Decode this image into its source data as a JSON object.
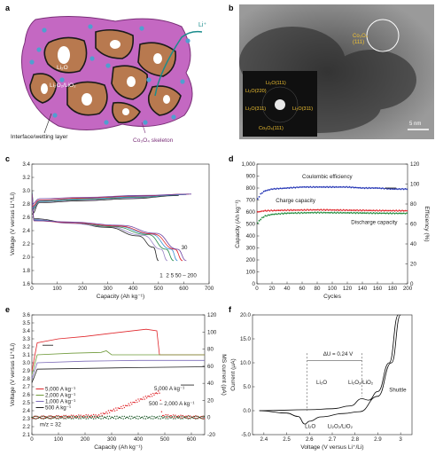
{
  "colors": {
    "purple": "#c468c2",
    "purple_dark": "#7a2f78",
    "brown": "#b8794f",
    "blue_dot": "#4f9fd0",
    "coul_blue": "#2233b4",
    "charge_red": "#e0262b",
    "discharge_green": "#1e8a3a",
    "ms_purple": "#5a57a8",
    "shuttle_green": "#1e8a3a"
  },
  "panel_labels": {
    "a": "a",
    "b": "b",
    "c": "c",
    "d": "d",
    "e": "e",
    "f": "f"
  },
  "panel_a": {
    "li_ion": "Li⁺",
    "li2o": "Li₂O",
    "li2o2_lio2": "Li₂O₂/LiO₂",
    "interface_label": "Interface/wetting layer",
    "skeleton_label": "Co₃O₄ skeleton",
    "icon": "porous-composite-schematic"
  },
  "panel_b": {
    "label_top": "Co₃O₄",
    "label_top2": "(111)",
    "saed": [
      "Li₂O(111)",
      "Li₂O(220)",
      "Li₂O(311)",
      "Co₃O₄(111)",
      "Li₂O(311)"
    ],
    "scale_bar": "5 nm"
  },
  "chart_data": [
    {
      "panel": "c",
      "type": "line",
      "xlabel": "Capacity (Ah kg⁻¹)",
      "ylabel": "Voltage (V versus Li⁺/Li)",
      "xlim": [
        0,
        700
      ],
      "ylim": [
        1.6,
        3.4
      ],
      "xticks": [
        0,
        100,
        200,
        300,
        400,
        500,
        600,
        700
      ],
      "yticks": [
        1.6,
        1.8,
        2.0,
        2.2,
        2.4,
        2.6,
        2.8,
        3.0,
        3.2,
        3.4
      ],
      "annotations": [
        "30",
        "1",
        "2",
        "5",
        "50 – 200"
      ],
      "series": [
        {
          "color": "#222222",
          "charge": [
            [
              0,
              2.65
            ],
            [
              30,
              2.82
            ],
            [
              200,
              2.85
            ],
            [
              400,
              2.88
            ],
            [
              580,
              2.93
            ]
          ],
          "discharge": [
            [
              0,
              3.0
            ],
            [
              8,
              2.58
            ],
            [
              150,
              2.52
            ],
            [
              300,
              2.45
            ],
            [
              420,
              2.32
            ],
            [
              480,
              2.15
            ],
            [
              500,
              1.95
            ]
          ]
        },
        {
          "color": "#9a86c6",
          "charge": [
            [
              0,
              2.7
            ],
            [
              30,
              2.83
            ],
            [
              200,
              2.86
            ],
            [
              400,
              2.89
            ],
            [
              590,
              2.94
            ]
          ],
          "discharge": [
            [
              0,
              2.98
            ],
            [
              8,
              2.57
            ],
            [
              150,
              2.51
            ],
            [
              300,
              2.46
            ],
            [
              440,
              2.33
            ],
            [
              510,
              2.12
            ],
            [
              535,
              1.95
            ]
          ]
        },
        {
          "color": "#2a8d4f",
          "charge": [
            [
              0,
              2.72
            ],
            [
              30,
              2.84
            ],
            [
              200,
              2.87
            ],
            [
              420,
              2.9
            ],
            [
              600,
              2.94
            ]
          ],
          "discharge": [
            [
              0,
              2.97
            ],
            [
              8,
              2.56
            ],
            [
              150,
              2.52
            ],
            [
              320,
              2.46
            ],
            [
              460,
              2.34
            ],
            [
              530,
              2.12
            ],
            [
              560,
              1.95
            ]
          ]
        },
        {
          "color": "#3e8fd2",
          "charge": [
            [
              0,
              2.74
            ],
            [
              30,
              2.85
            ],
            [
              200,
              2.88
            ],
            [
              420,
              2.91
            ],
            [
              610,
              2.94
            ]
          ],
          "discharge": [
            [
              0,
              2.96
            ],
            [
              8,
              2.56
            ],
            [
              150,
              2.52
            ],
            [
              330,
              2.47
            ],
            [
              470,
              2.35
            ],
            [
              550,
              2.12
            ],
            [
              575,
              1.95
            ]
          ]
        },
        {
          "color": "#e0262b",
          "charge": [
            [
              0,
              2.76
            ],
            [
              30,
              2.86
            ],
            [
              200,
              2.89
            ],
            [
              430,
              2.92
            ],
            [
              620,
              2.95
            ]
          ],
          "discharge": [
            [
              0,
              2.95
            ],
            [
              8,
              2.55
            ],
            [
              150,
              2.52
            ],
            [
              340,
              2.47
            ],
            [
              480,
              2.35
            ],
            [
              565,
              2.12
            ],
            [
              595,
              1.95
            ]
          ]
        },
        {
          "color": "#6a3fa0",
          "charge": [
            [
              0,
              2.8
            ],
            [
              30,
              2.88
            ],
            [
              200,
              2.9
            ],
            [
              440,
              2.93
            ],
            [
              630,
              2.95
            ]
          ],
          "discharge": [
            [
              0,
              2.94
            ],
            [
              8,
              2.55
            ],
            [
              150,
              2.53
            ],
            [
              350,
              2.48
            ],
            [
              490,
              2.36
            ],
            [
              575,
              2.12
            ],
            [
              610,
              1.95
            ]
          ]
        }
      ]
    },
    {
      "panel": "d",
      "type": "scatter",
      "xlabel": "Cycles",
      "ylabel": "Capacity (Ah kg⁻¹)",
      "y2label": "Efficiency (%)",
      "xlim": [
        0,
        200
      ],
      "ylim": [
        0,
        1000
      ],
      "y2lim": [
        0,
        120
      ],
      "xticks": [
        0,
        20,
        40,
        60,
        80,
        100,
        120,
        140,
        160,
        180,
        200
      ],
      "yticks": [
        0,
        100,
        200,
        300,
        400,
        500,
        600,
        700,
        800,
        900,
        1000
      ],
      "y2ticks": [
        0,
        20,
        40,
        60,
        80,
        100,
        120
      ],
      "series": [
        {
          "name": "Coulombic efficiency",
          "axis": "right",
          "color": "#2233b4",
          "points": [
            [
              1,
              85
            ],
            [
              5,
              90
            ],
            [
              10,
              93
            ],
            [
              20,
              95
            ],
            [
              40,
              96
            ],
            [
              60,
              97
            ],
            [
              80,
              97
            ],
            [
              100,
              97
            ],
            [
              120,
              97
            ],
            [
              140,
              96
            ],
            [
              160,
              96
            ],
            [
              180,
              95
            ],
            [
              200,
              95
            ]
          ]
        },
        {
          "name": "Charge capacity",
          "axis": "left",
          "color": "#e0262b",
          "points": [
            [
              1,
              600
            ],
            [
              10,
              610
            ],
            [
              40,
              615
            ],
            [
              80,
              618
            ],
            [
              120,
              615
            ],
            [
              160,
              612
            ],
            [
              200,
              610
            ]
          ]
        },
        {
          "name": "Discharge capacity",
          "axis": "left",
          "color": "#1e8a3a",
          "points": [
            [
              1,
              510
            ],
            [
              5,
              540
            ],
            [
              10,
              565
            ],
            [
              20,
              580
            ],
            [
              40,
              590
            ],
            [
              80,
              595
            ],
            [
              120,
              593
            ],
            [
              160,
              590
            ],
            [
              200,
              588
            ]
          ]
        }
      ]
    },
    {
      "panel": "e",
      "type": "line",
      "xlabel": "Capacity (Ah kg⁻¹)",
      "ylabel": "Voltage (V versus Li⁺/Li)",
      "y2label": "MS current (pA)",
      "xlim": [
        0,
        650
      ],
      "ylim": [
        2.1,
        3.6
      ],
      "y2lim": [
        -20,
        120
      ],
      "xticks": [
        0,
        100,
        200,
        300,
        400,
        500,
        600
      ],
      "yticks": [
        2.1,
        2.2,
        2.3,
        2.4,
        2.5,
        2.6,
        2.7,
        2.8,
        2.9,
        3.0,
        3.1,
        3.2,
        3.3,
        3.4,
        3.5,
        3.6
      ],
      "y2ticks": [
        -20,
        0,
        20,
        40,
        60,
        80,
        100,
        120
      ],
      "legend": [
        "5,000 A kg⁻¹",
        "2,000 A kg⁻¹",
        "1,000 A kg⁻¹",
        "500 A kg⁻¹"
      ],
      "annotations": [
        "5,000 A kg⁻¹",
        "500 – 2,000 A kg⁻¹",
        "m/z = 32"
      ],
      "series": [
        {
          "name": "5,000 A kg⁻¹",
          "color": "#e0262b",
          "points": [
            [
              0,
              2.9
            ],
            [
              20,
              3.25
            ],
            [
              100,
              3.3
            ],
            [
              200,
              3.33
            ],
            [
              300,
              3.37
            ],
            [
              430,
              3.42
            ],
            [
              470,
              3.4
            ],
            [
              480,
              3.1
            ],
            [
              650,
              3.1
            ]
          ]
        },
        {
          "name": "2,000 A kg⁻¹",
          "color": "#6f9a3a",
          "points": [
            [
              0,
              2.85
            ],
            [
              20,
              3.1
            ],
            [
              150,
              3.12
            ],
            [
              260,
              3.13
            ],
            [
              280,
              3.15
            ],
            [
              300,
              3.1
            ],
            [
              650,
              3.1
            ]
          ]
        },
        {
          "name": "1,000 A kg⁻¹",
          "color": "#7c6bb8",
          "points": [
            [
              0,
              2.8
            ],
            [
              20,
              3.0
            ],
            [
              200,
              3.02
            ],
            [
              400,
              3.03
            ],
            [
              650,
              3.03
            ]
          ]
        },
        {
          "name": "500 A kg⁻¹",
          "color": "#222222",
          "points": [
            [
              0,
              2.75
            ],
            [
              20,
              2.92
            ],
            [
              200,
              2.93
            ],
            [
              400,
              2.94
            ],
            [
              650,
              2.95
            ]
          ]
        }
      ],
      "ms_series": [
        {
          "name": "5,000 A kg⁻¹",
          "color": "#e0262b",
          "points": [
            [
              0,
              0
            ],
            [
              250,
              2
            ],
            [
              300,
              8
            ],
            [
              350,
              13
            ],
            [
              400,
              20
            ],
            [
              450,
              26
            ],
            [
              480,
              30
            ],
            [
              490,
              2
            ],
            [
              650,
              0
            ]
          ]
        },
        {
          "name": "500 – 2,000 A kg⁻¹",
          "color": "#1e5a2a",
          "points": [
            [
              0,
              0
            ],
            [
              650,
              0
            ]
          ]
        }
      ]
    },
    {
      "panel": "f",
      "type": "line",
      "xlabel": "Voltage (V versus Li⁺/Li)",
      "ylabel": "Current (μA)",
      "xlim": [
        2.35,
        3.05
      ],
      "ylim": [
        -5,
        20
      ],
      "xticks": [
        2.4,
        2.5,
        2.6,
        2.7,
        2.8,
        2.9,
        3.0
      ],
      "yticks": [
        -5,
        0,
        5,
        10,
        15,
        20
      ],
      "annotations": [
        "ΔU = 0.24 V",
        "Li₂O",
        "Li₂O₂/LiO₂",
        "Shuttle",
        "Li₂O",
        "Li₂O₂/LiO₂"
      ],
      "series": [
        {
          "name": "cv1",
          "color": "#000000",
          "points": [
            [
              2.38,
              0
            ],
            [
              2.5,
              -0.5
            ],
            [
              2.55,
              -1.2
            ],
            [
              2.58,
              -2.8
            ],
            [
              2.6,
              -2.2
            ],
            [
              2.65,
              -1.3
            ],
            [
              2.75,
              -0.6
            ],
            [
              2.82,
              -0.2
            ],
            [
              2.9,
              3
            ],
            [
              2.96,
              10
            ],
            [
              3.0,
              20
            ]
          ]
        },
        {
          "name": "cv2",
          "color": "#000000",
          "points": [
            [
              2.38,
              0
            ],
            [
              2.6,
              0.2
            ],
            [
              2.7,
              0.4
            ],
            [
              2.78,
              1
            ],
            [
              2.83,
              2.5
            ],
            [
              2.86,
              2.2
            ],
            [
              2.9,
              4
            ],
            [
              2.95,
              10
            ],
            [
              2.99,
              20
            ]
          ]
        }
      ]
    }
  ]
}
